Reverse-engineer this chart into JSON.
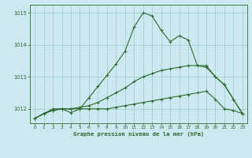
{
  "title": "Graphe pression niveau de la mer (hPa)",
  "background_color": "#cce8f0",
  "grid_color": "#99cccc",
  "line_color": "#2d6a2d",
  "xlim": [
    -0.5,
    23.5
  ],
  "ylim": [
    1011.55,
    1015.25
  ],
  "yticks": [
    1012,
    1013,
    1014,
    1015
  ],
  "xticks": [
    0,
    1,
    2,
    3,
    4,
    5,
    6,
    7,
    8,
    9,
    10,
    11,
    12,
    13,
    14,
    15,
    16,
    17,
    18,
    19,
    20,
    21,
    22,
    23
  ],
  "series1": [
    1011.7,
    1011.85,
    1011.95,
    1012.0,
    1012.0,
    1012.0,
    1012.0,
    1012.0,
    1012.0,
    1012.05,
    1012.1,
    1012.15,
    1012.2,
    1012.25,
    1012.3,
    1012.35,
    1012.4,
    1012.45,
    1012.5,
    1012.55,
    1012.3,
    1012.0,
    1011.95,
    1011.85
  ],
  "series2": [
    1011.7,
    1011.85,
    1011.95,
    1012.0,
    1012.0,
    1012.05,
    1012.1,
    1012.2,
    1012.35,
    1012.5,
    1012.65,
    1012.85,
    1013.0,
    1013.1,
    1013.2,
    1013.25,
    1013.3,
    1013.35,
    1013.35,
    1013.35,
    1013.0,
    1012.75,
    1012.3,
    1011.85
  ],
  "series3": [
    1011.7,
    1011.85,
    1012.0,
    1012.0,
    1011.88,
    1012.0,
    1012.35,
    1012.7,
    1013.05,
    1013.4,
    1013.8,
    1014.55,
    1015.0,
    1014.9,
    1014.45,
    1014.1,
    1014.28,
    1014.15,
    1013.35,
    1013.3,
    1013.0,
    1012.75,
    1012.3,
    1011.85
  ]
}
